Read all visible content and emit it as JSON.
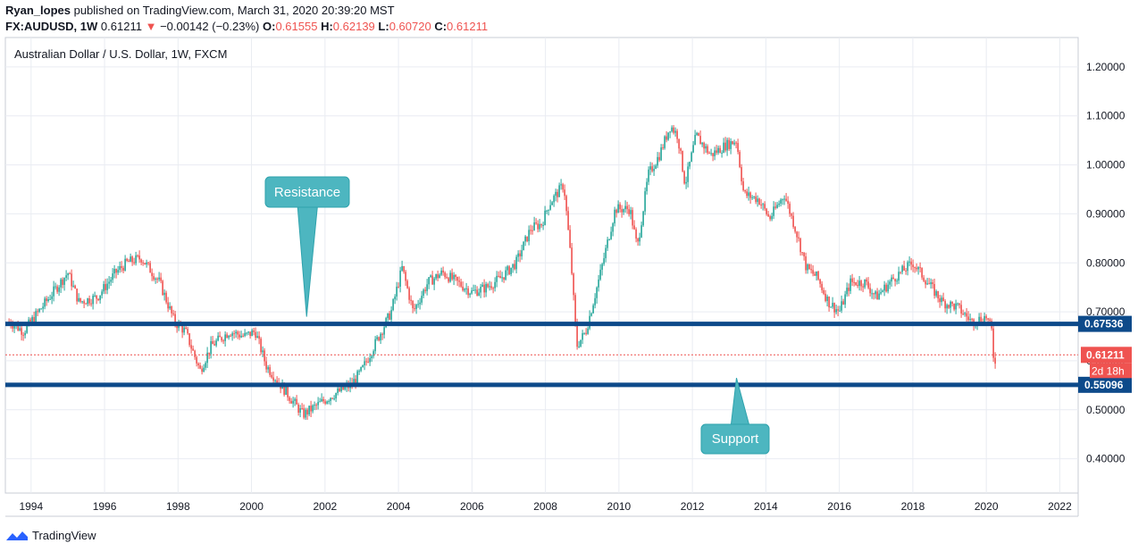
{
  "header": {
    "author": "Ryan_lopes",
    "published_text": " published on TradingView.com, March 31, 2020 20:39:20 MST",
    "symbol": "FX:AUDUSD, 1W",
    "last": "0.61211",
    "change_arrow": "▼",
    "change": "−0.00142 (−0.23%)",
    "o_label": "O:",
    "o_value": "0.61555",
    "h_label": "H:",
    "h_value": "0.62139",
    "l_label": "L:",
    "l_value": "0.60720",
    "c_label": "C:",
    "c_value": "0.61211"
  },
  "footer": {
    "brand": "TradingView"
  },
  "colors": {
    "up": "#26a69a",
    "down": "#ef5350",
    "level_line": "#0d4a8a",
    "callout": "#4db6c0",
    "grid": "#e9ecf2",
    "last_price": "#ef5350"
  },
  "chart_data": {
    "type": "candlestick",
    "title": "Australian Dollar / U.S. Dollar, 1W, FXCM",
    "x_ticks": [
      "1994",
      "1996",
      "1998",
      "2000",
      "2002",
      "2004",
      "2006",
      "2008",
      "2010",
      "2012",
      "2014",
      "2016",
      "2018",
      "2020",
      "2022"
    ],
    "y_ticks": [
      "0.40000",
      "0.50000",
      "0.60000",
      "0.70000",
      "0.80000",
      "0.90000",
      "1.00000",
      "1.10000",
      "1.20000"
    ],
    "y_range": [
      0.33,
      1.26
    ],
    "x_range": [
      1993.3,
      2022.5
    ],
    "price_anchors": [
      [
        1993.4,
        0.68
      ],
      [
        1993.8,
        0.66
      ],
      [
        1994.2,
        0.7
      ],
      [
        1994.5,
        0.73
      ],
      [
        1995.0,
        0.78
      ],
      [
        1995.3,
        0.72
      ],
      [
        1995.8,
        0.73
      ],
      [
        1996.3,
        0.78
      ],
      [
        1996.6,
        0.8
      ],
      [
        1997.0,
        0.81
      ],
      [
        1997.5,
        0.76
      ],
      [
        1997.9,
        0.68
      ],
      [
        1998.2,
        0.66
      ],
      [
        1998.6,
        0.58
      ],
      [
        1998.9,
        0.63
      ],
      [
        1999.4,
        0.66
      ],
      [
        1999.8,
        0.65
      ],
      [
        2000.1,
        0.66
      ],
      [
        2000.4,
        0.59
      ],
      [
        2000.8,
        0.55
      ],
      [
        2001.1,
        0.52
      ],
      [
        2001.4,
        0.49
      ],
      [
        2001.8,
        0.51
      ],
      [
        2002.2,
        0.53
      ],
      [
        2002.7,
        0.55
      ],
      [
        2003.0,
        0.58
      ],
      [
        2003.4,
        0.64
      ],
      [
        2003.8,
        0.7
      ],
      [
        2004.1,
        0.79
      ],
      [
        2004.4,
        0.7
      ],
      [
        2004.8,
        0.76
      ],
      [
        2005.2,
        0.78
      ],
      [
        2005.6,
        0.76
      ],
      [
        2006.0,
        0.74
      ],
      [
        2006.4,
        0.75
      ],
      [
        2006.8,
        0.77
      ],
      [
        2007.2,
        0.8
      ],
      [
        2007.6,
        0.87
      ],
      [
        2007.9,
        0.88
      ],
      [
        2008.1,
        0.92
      ],
      [
        2008.5,
        0.96
      ],
      [
        2008.7,
        0.8
      ],
      [
        2008.85,
        0.63
      ],
      [
        2009.1,
        0.66
      ],
      [
        2009.5,
        0.78
      ],
      [
        2009.9,
        0.91
      ],
      [
        2010.3,
        0.91
      ],
      [
        2010.5,
        0.83
      ],
      [
        2010.8,
        0.98
      ],
      [
        2011.1,
        1.02
      ],
      [
        2011.4,
        1.08
      ],
      [
        2011.6,
        1.06
      ],
      [
        2011.8,
        0.96
      ],
      [
        2012.1,
        1.06
      ],
      [
        2012.5,
        1.02
      ],
      [
        2012.9,
        1.04
      ],
      [
        2013.2,
        1.05
      ],
      [
        2013.4,
        0.94
      ],
      [
        2013.8,
        0.93
      ],
      [
        2014.1,
        0.89
      ],
      [
        2014.5,
        0.94
      ],
      [
        2014.8,
        0.87
      ],
      [
        2015.1,
        0.79
      ],
      [
        2015.4,
        0.77
      ],
      [
        2015.7,
        0.72
      ],
      [
        2016.0,
        0.7
      ],
      [
        2016.3,
        0.76
      ],
      [
        2016.7,
        0.76
      ],
      [
        2017.0,
        0.73
      ],
      [
        2017.5,
        0.77
      ],
      [
        2018.0,
        0.8
      ],
      [
        2018.4,
        0.76
      ],
      [
        2018.8,
        0.72
      ],
      [
        2019.2,
        0.71
      ],
      [
        2019.6,
        0.68
      ],
      [
        2020.0,
        0.69
      ],
      [
        2020.15,
        0.66
      ],
      [
        2020.22,
        0.58
      ],
      [
        2020.25,
        0.612
      ]
    ],
    "horizontal_levels": [
      {
        "price": 0.67536,
        "label": "0.67536"
      },
      {
        "price": 0.55096,
        "label": "0.55096"
      }
    ],
    "last_price": {
      "price": 0.61211,
      "label": "0.61211",
      "countdown": "2d 18h"
    },
    "annotations": [
      {
        "text": "Resistance",
        "anchor_x": 2001.5,
        "anchor_price": 0.69
      },
      {
        "text": "Support",
        "anchor_x": 2013.2,
        "anchor_price": 0.565
      }
    ]
  }
}
